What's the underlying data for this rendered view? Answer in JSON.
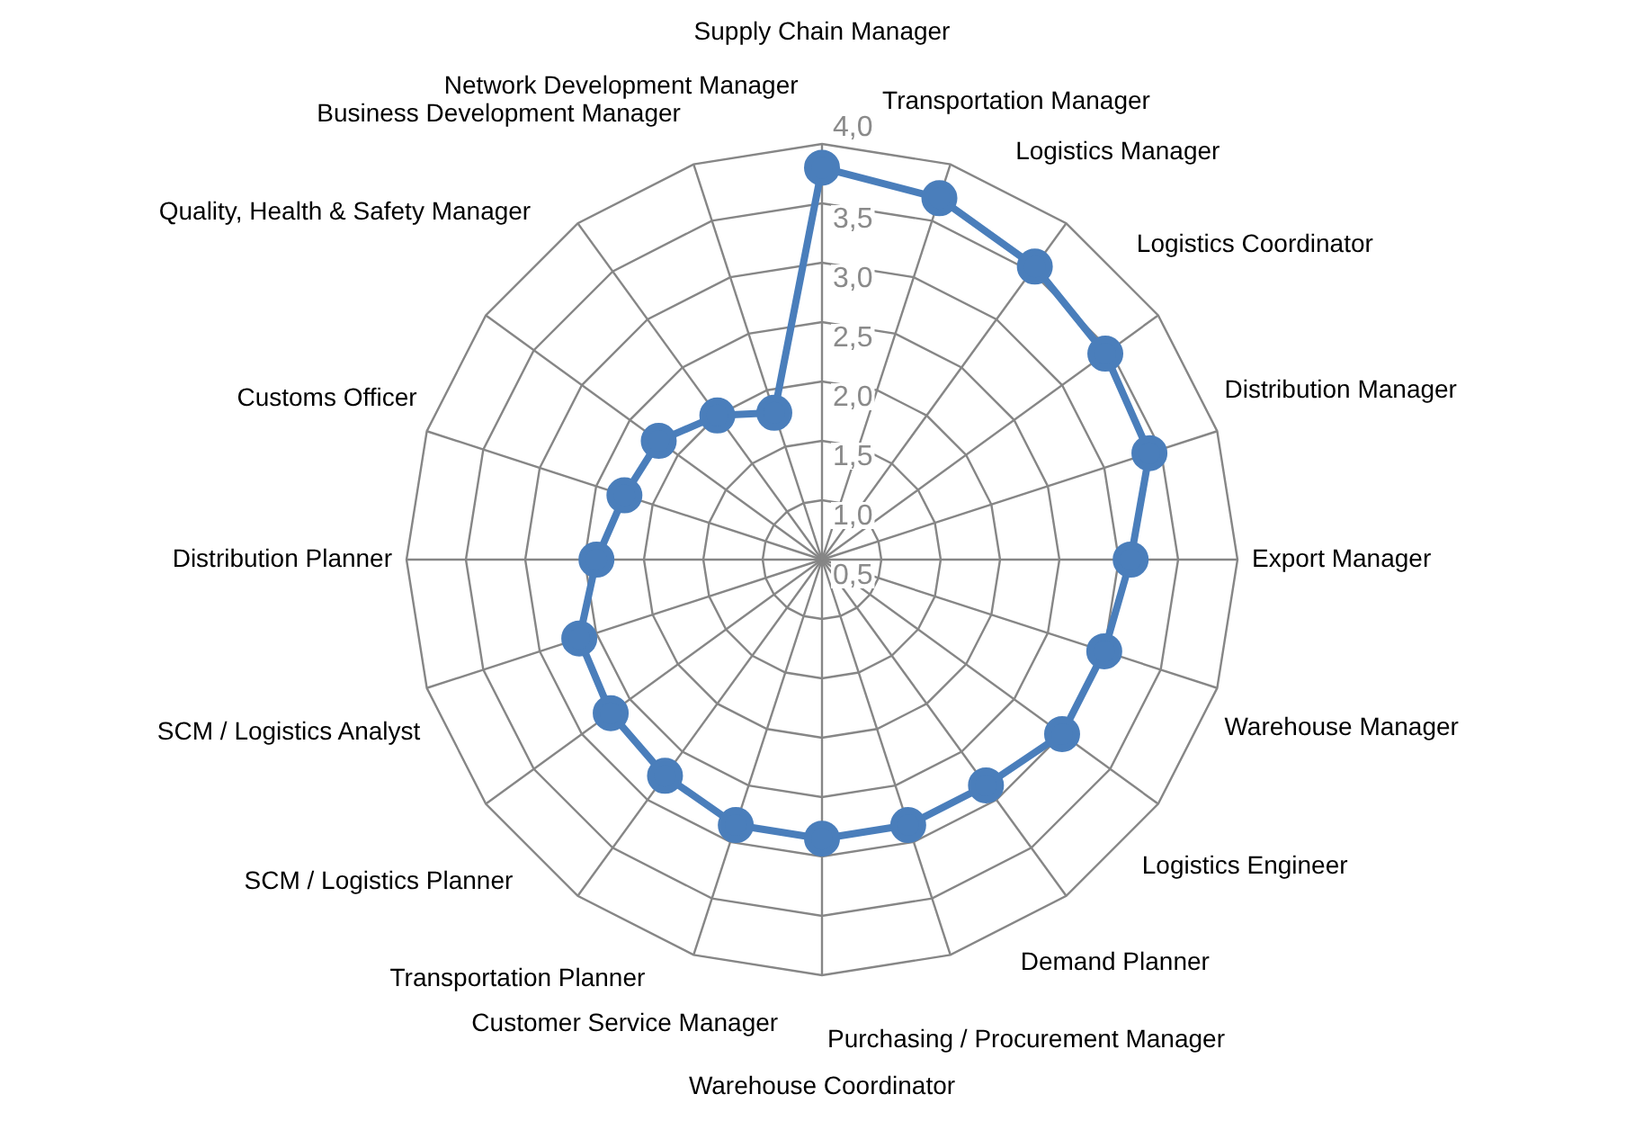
{
  "chart_data": {
    "type": "radar",
    "categories": [
      "Supply Chain Manager",
      "Transportation Manager",
      "Logistics Manager",
      "Logistics Coordinator",
      "Distribution Manager",
      "Export Manager",
      "Warehouse Manager",
      "Logistics Engineer",
      "Demand Planner",
      "Purchasing / Procurement Manager",
      "Warehouse Coordinator",
      "Customer Service Manager",
      "Transportation Planner",
      "SCM / Logistics Planner",
      "SCM / Logistics Analyst",
      "Distribution Planner",
      "Customs Officer",
      "Quality, Health & Safety Manager",
      "Business Development Manager",
      "Network Development Manager"
    ],
    "series": [
      {
        "color": "#4a7ebb",
        "values": [
          3.8,
          3.7,
          3.55,
          3.45,
          3.4,
          3.1,
          3.0,
          3.0,
          2.85,
          2.85,
          2.85,
          2.85,
          2.75,
          2.7,
          2.65,
          2.4,
          2.25,
          2.2,
          2.0,
          1.8
        ]
      }
    ],
    "ylim": [
      0.5,
      4.0
    ],
    "yticks": [
      {
        "value": 0.5,
        "label": "0,5"
      },
      {
        "value": 1.0,
        "label": "1,0"
      },
      {
        "value": 1.5,
        "label": "1,5"
      },
      {
        "value": 2.0,
        "label": "2,0"
      },
      {
        "value": 2.5,
        "label": "2,5"
      },
      {
        "value": 3.0,
        "label": "3,0"
      },
      {
        "value": 3.5,
        "label": "3,5"
      },
      {
        "value": 4.0,
        "label": "4,0"
      }
    ],
    "grid": true,
    "legend": false,
    "marker": "circle",
    "line_style": "solid"
  }
}
